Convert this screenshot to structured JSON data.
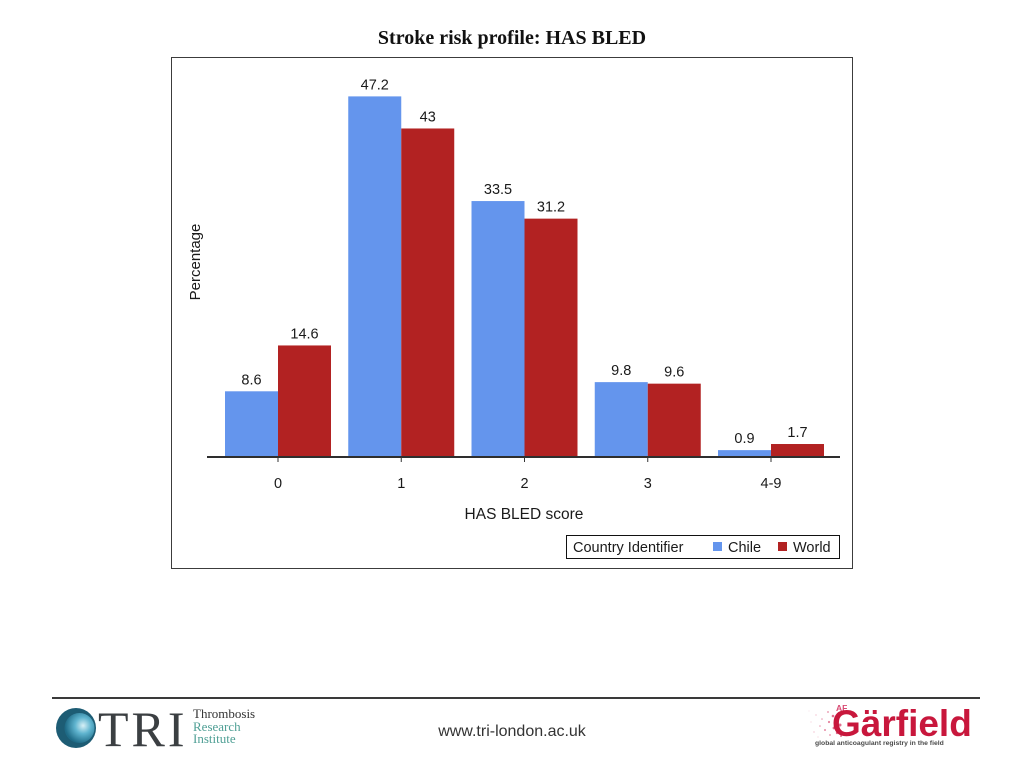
{
  "chart_data": {
    "type": "bar",
    "title": "Stroke risk profile: HAS BLED",
    "xlabel": "HAS BLED score",
    "ylabel": "Percentage",
    "categories": [
      "0",
      "1",
      "2",
      "3",
      "4-9"
    ],
    "series": [
      {
        "name": "Chile",
        "values": [
          8.6,
          47.2,
          33.5,
          9.8,
          0.9
        ],
        "color": "#6495ED"
      },
      {
        "name": "World",
        "values": [
          14.6,
          43,
          31.2,
          9.6,
          1.7
        ],
        "color": "#B22222"
      }
    ],
    "ylim": [
      0,
      50
    ],
    "grid": false,
    "data_labels": true,
    "legend": {
      "title": "Country Identifier",
      "position": "bottom-right"
    }
  },
  "footer": {
    "tri_logo": {
      "letters": "TRI",
      "line1": "Thrombosis",
      "line2": "Research",
      "line3": "Institute"
    },
    "url": "www.tri-london.ac.uk",
    "garfield_logo": {
      "prefix": "AF",
      "wordmark": "Gärfield",
      "tagline": "global anticoagulant registry in the field"
    }
  },
  "icons": {
    "tri_mark": "globe-icon",
    "garfield_mark": "spray-dots-icon"
  }
}
